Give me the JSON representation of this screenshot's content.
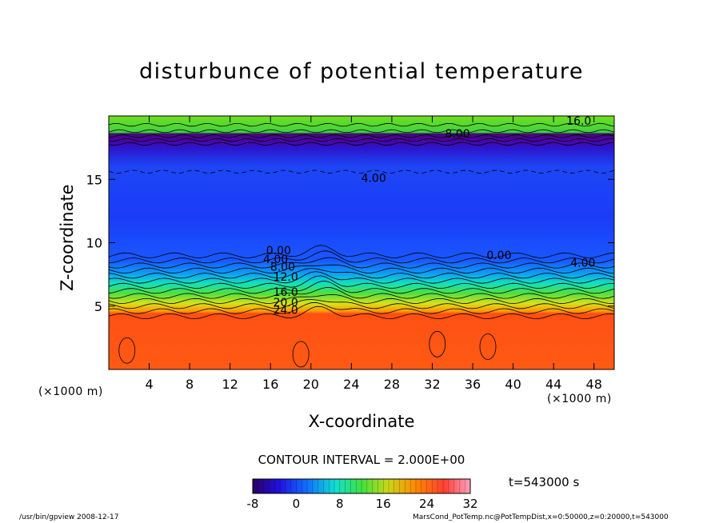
{
  "chart_data": {
    "type": "heatmap",
    "title": "disturbunce of potential temperature",
    "xlabel": "X-coordinate",
    "ylabel": "Z-coordinate",
    "x_unit": "(×1000 m)",
    "y_unit": "(×1000 m)",
    "xlim": [
      0,
      50
    ],
    "ylim": [
      0,
      20
    ],
    "x_ticks": [
      4,
      8,
      12,
      16,
      20,
      24,
      28,
      32,
      36,
      40,
      44,
      48
    ],
    "y_ticks": [
      5,
      10,
      15
    ],
    "contour_labels": [
      {
        "text": "16.0",
        "x": 46.5,
        "z": 19.3
      },
      {
        "text": "8.00",
        "x": 34.5,
        "z": 18.3
      },
      {
        "text": "4.00",
        "x": 26.2,
        "z": 14.8
      },
      {
        "text": "0.00",
        "x": 38.6,
        "z": 8.7
      },
      {
        "text": "4.00",
        "x": 46.9,
        "z": 8.1
      },
      {
        "text": "0.00",
        "x": 16.8,
        "z": 9.1
      },
      {
        "text": "4.00",
        "x": 16.5,
        "z": 8.4
      },
      {
        "text": "8.00",
        "x": 17.2,
        "z": 7.8
      },
      {
        "text": "12.0",
        "x": 17.5,
        "z": 7.0
      },
      {
        "text": "16.0",
        "x": 17.5,
        "z": 5.8
      },
      {
        "text": "20.0",
        "x": 17.5,
        "z": 5.0
      },
      {
        "text": "24.0",
        "x": 17.5,
        "z": 4.4
      }
    ],
    "colorbar": {
      "min": -8,
      "max": 32,
      "tick_labels": [
        -8,
        0,
        8,
        16,
        24,
        32
      ]
    },
    "contour_interval": "CONTOUR INTERVAL = 2.000E+00",
    "time_label": "t=543000 s"
  },
  "footer": {
    "left": "/usr/bin/gpview  2008-12-17",
    "right": "MarsCond_PotTemp.nc@PotTempDist,x=0:50000,z=0:20000,t=543000"
  },
  "colors": {
    "band_colors": [
      "#2a00a0",
      "#1a2cf0",
      "#1460ff",
      "#0d9cf4",
      "#10d8d0",
      "#18e890",
      "#3ee040",
      "#7ed820",
      "#c0d818",
      "#f0b010",
      "#ff6a00",
      "#ff4414"
    ]
  }
}
